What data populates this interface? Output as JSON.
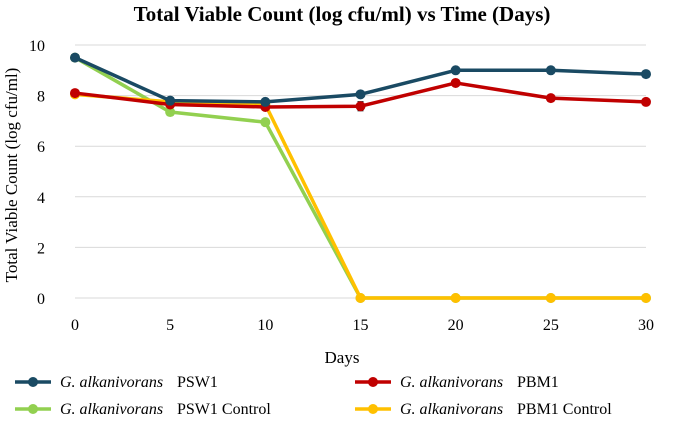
{
  "chart_data": {
    "type": "line",
    "title": "Total Viable Count (log cfu/ml) vs Time (Days)",
    "xlabel": "Days",
    "ylabel": "Total Viable Count (log cfu/ml)",
    "x": [
      0,
      5,
      10,
      15,
      20,
      25,
      30
    ],
    "xlim": [
      0,
      30
    ],
    "ylim": [
      0,
      10
    ],
    "xticks": [
      0,
      5,
      10,
      15,
      20,
      25,
      30
    ],
    "yticks": [
      0,
      2,
      4,
      6,
      8,
      10
    ],
    "grid": "horizontal",
    "legend_position": "bottom",
    "series": [
      {
        "name": "PSW1",
        "species": "G. alkanivorans",
        "strain": "PSW1",
        "color": "#1a4a63",
        "values": [
          9.5,
          7.8,
          7.75,
          8.05,
          9.0,
          9.0,
          8.85
        ]
      },
      {
        "name": "PBM1",
        "species": "G. alkanivorans",
        "strain": "PBM1",
        "color": "#c00000",
        "values": [
          8.1,
          7.65,
          7.55,
          7.58,
          8.5,
          7.9,
          7.75
        ],
        "error": [
          0,
          0,
          0,
          0.18,
          0,
          0,
          0
        ]
      },
      {
        "name": "PSW1 Control",
        "species": "G. alkanivorans",
        "strain": "PSW1 Control",
        "color": "#92d050",
        "values": [
          9.5,
          7.35,
          6.95,
          0,
          0,
          0,
          0
        ]
      },
      {
        "name": "PBM1 Control",
        "species": "G. alkanivorans",
        "strain": "PBM1 Control",
        "color": "#ffc000",
        "values": [
          8.05,
          7.75,
          7.65,
          0,
          0,
          0,
          0
        ]
      }
    ]
  }
}
